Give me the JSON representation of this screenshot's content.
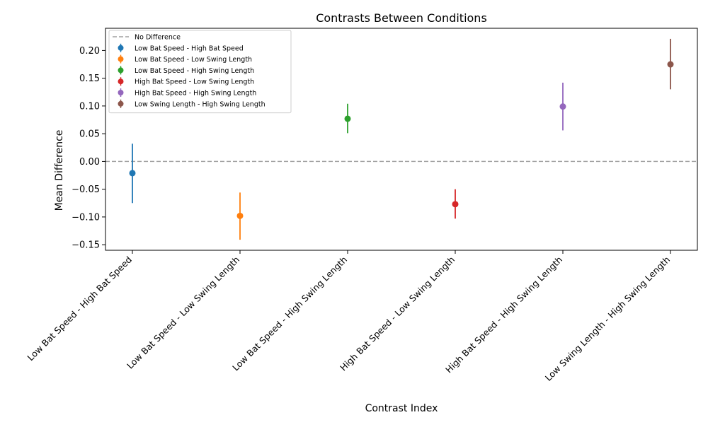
{
  "chart_data": {
    "type": "scatter",
    "title": "Contrasts Between Conditions",
    "xlabel": "Contrast Index",
    "ylabel": "Mean Difference",
    "ylim": [
      -0.16,
      0.24
    ],
    "yticks": [
      -0.15,
      -0.1,
      -0.05,
      0.0,
      0.05,
      0.1,
      0.15,
      0.2
    ],
    "ytick_labels": [
      "−0.15",
      "−0.10",
      "−0.05",
      "0.00",
      "0.05",
      "0.10",
      "0.15",
      "0.20"
    ],
    "grid": false,
    "legend_position": "top-left",
    "reference_line": {
      "label": "No Difference",
      "y": 0,
      "color": "#a0a0a0",
      "style": "dashed"
    },
    "categories": [
      "Low Bat Speed - High Bat Speed",
      "Low Bat Speed - Low Swing Length",
      "Low Bat Speed - High Swing Length",
      "High Bat Speed - Low Swing Length",
      "High Bat Speed - High Swing Length",
      "Low Swing Length - High Swing Length"
    ],
    "series": [
      {
        "name": "Low Bat Speed - High Bat Speed",
        "color": "#1f77b4",
        "mean": -0.021,
        "lower": -0.075,
        "upper": 0.032
      },
      {
        "name": "Low Bat Speed - Low Swing Length",
        "color": "#ff7f0e",
        "mean": -0.098,
        "lower": -0.141,
        "upper": -0.056
      },
      {
        "name": "Low Bat Speed - High Swing Length",
        "color": "#2ca02c",
        "mean": 0.077,
        "lower": 0.051,
        "upper": 0.104
      },
      {
        "name": "High Bat Speed - Low Swing Length",
        "color": "#d62728",
        "mean": -0.077,
        "lower": -0.103,
        "upper": -0.05
      },
      {
        "name": "High Bat Speed - High Swing Length",
        "color": "#9467bd",
        "mean": 0.099,
        "lower": 0.056,
        "upper": 0.142
      },
      {
        "name": "Low Swing Length - High Swing Length",
        "color": "#8c564b",
        "mean": 0.175,
        "lower": 0.13,
        "upper": 0.221
      }
    ]
  }
}
